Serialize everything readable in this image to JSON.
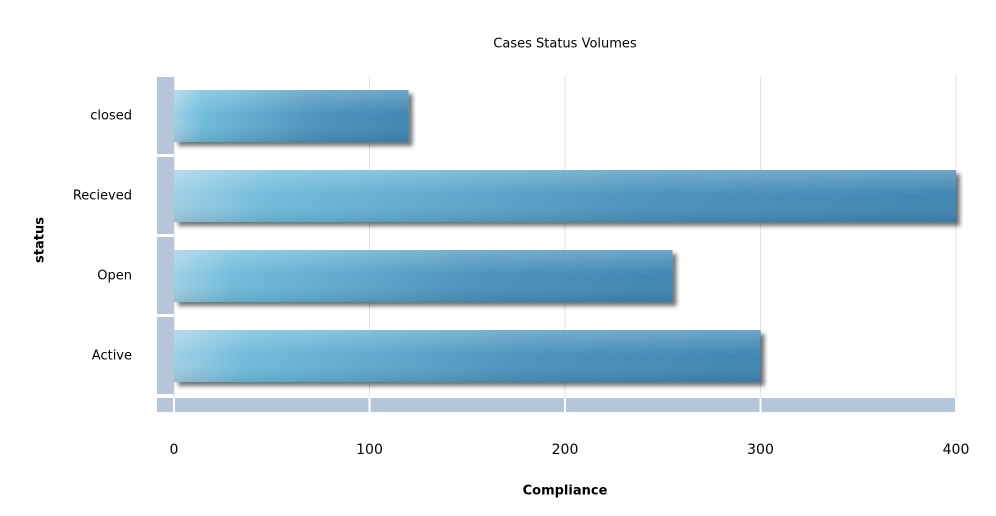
{
  "chart_data": {
    "type": "bar",
    "orientation": "horizontal",
    "title": "Cases Status Volumes",
    "categories": [
      "closed",
      "Recieved",
      "Open",
      "Active"
    ],
    "values": [
      120,
      400,
      255,
      300
    ],
    "xlabel": "Compliance",
    "ylabel": "status",
    "xlim": [
      0,
      400
    ],
    "xticks": [
      0,
      100,
      200,
      300,
      400
    ],
    "grid": true,
    "color": "#4a90bb"
  }
}
